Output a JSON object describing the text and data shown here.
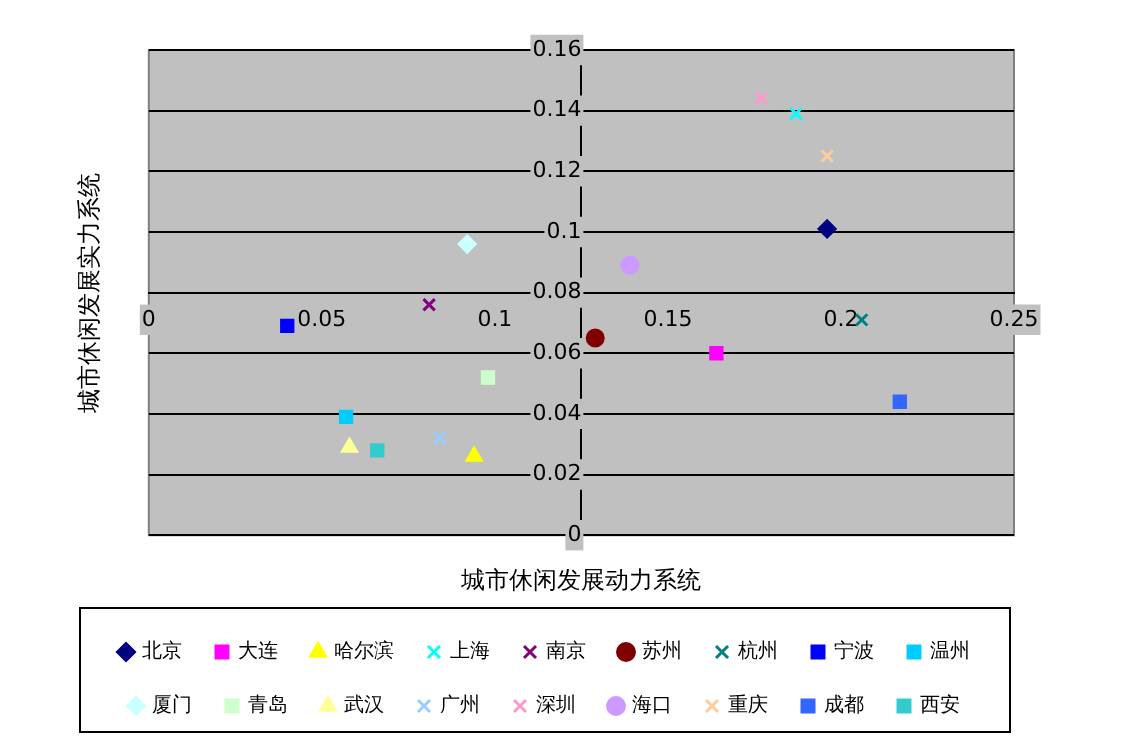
{
  "chart_data": {
    "type": "scatter",
    "xlabel": "城市休闲发展动力系统",
    "ylabel": "城市休闲发展实力系统",
    "xlim": [
      0,
      0.25
    ],
    "xticks": [
      0,
      0.05,
      0.1,
      0.15,
      0.2,
      0.25
    ],
    "ylim": [
      0,
      0.16
    ],
    "yticks": [
      0,
      0.02,
      0.04,
      0.06,
      0.08,
      0.1,
      0.12,
      0.14,
      0.16
    ],
    "grid": "y",
    "legend": "bottom",
    "series": [
      {
        "name": "北京",
        "color": "#000080",
        "marker": "diamond",
        "x": [
          0.196
        ],
        "values": [
          0.101
        ]
      },
      {
        "name": "大连",
        "color": "#ff00ff",
        "marker": "square",
        "x": [
          0.164
        ],
        "values": [
          0.06
        ]
      },
      {
        "name": "哈尔滨",
        "color": "#ffff00",
        "marker": "triangle",
        "x": [
          0.094
        ],
        "values": [
          0.026
        ]
      },
      {
        "name": "上海",
        "color": "#00ffff",
        "marker": "cross",
        "x": [
          0.187
        ],
        "values": [
          0.139
        ]
      },
      {
        "name": "南京",
        "color": "#800080",
        "marker": "cross",
        "x": [
          0.081
        ],
        "values": [
          0.076
        ]
      },
      {
        "name": "苏州",
        "color": "#800000",
        "marker": "circle",
        "x": [
          0.129
        ],
        "values": [
          0.065
        ]
      },
      {
        "name": "杭州",
        "color": "#008080",
        "marker": "cross",
        "x": [
          0.206
        ],
        "values": [
          0.071
        ]
      },
      {
        "name": "宁波",
        "color": "#0000ff",
        "marker": "square",
        "x": [
          0.04
        ],
        "values": [
          0.069
        ]
      },
      {
        "name": "温州",
        "color": "#00ccff",
        "marker": "square",
        "x": [
          0.057
        ],
        "values": [
          0.039
        ]
      },
      {
        "name": "厦门",
        "color": "#ccffff",
        "marker": "diamond",
        "x": [
          0.092
        ],
        "values": [
          0.096
        ]
      },
      {
        "name": "青岛",
        "color": "#ccffcc",
        "marker": "square",
        "x": [
          0.098
        ],
        "values": [
          0.052
        ]
      },
      {
        "name": "武汉",
        "color": "#ffff99",
        "marker": "triangle",
        "x": [
          0.058
        ],
        "values": [
          0.029
        ]
      },
      {
        "name": "广州",
        "color": "#99ccff",
        "marker": "cross",
        "x": [
          0.084
        ],
        "values": [
          0.032
        ]
      },
      {
        "name": "深圳",
        "color": "#ff99cc",
        "marker": "cross",
        "x": [
          0.177
        ],
        "values": [
          0.144
        ]
      },
      {
        "name": "海口",
        "color": "#cc99ff",
        "marker": "circle",
        "x": [
          0.139
        ],
        "values": [
          0.089
        ]
      },
      {
        "name": "重庆",
        "color": "#ffcc99",
        "marker": "cross",
        "x": [
          0.196
        ],
        "values": [
          0.125
        ]
      },
      {
        "name": "成都",
        "color": "#3366ff",
        "marker": "square",
        "x": [
          0.217
        ],
        "values": [
          0.044
        ]
      },
      {
        "name": "西安",
        "color": "#33cccc",
        "marker": "square",
        "x": [
          0.066
        ],
        "values": [
          0.028
        ]
      }
    ]
  }
}
